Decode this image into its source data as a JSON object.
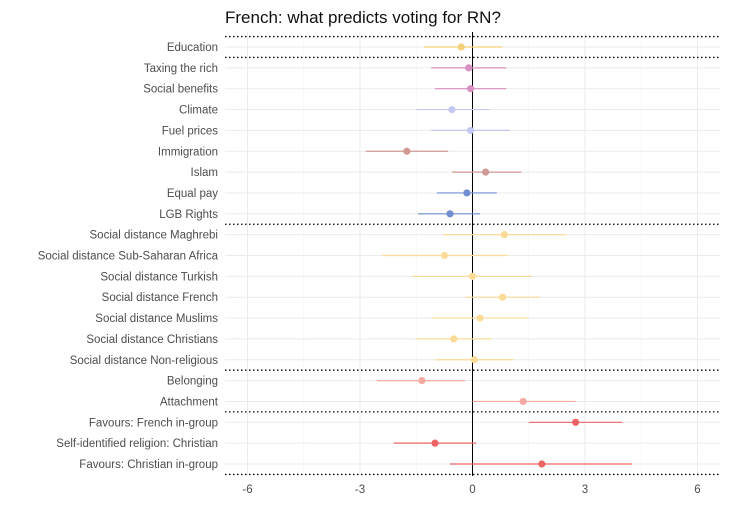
{
  "chart_data": {
    "type": "forest",
    "title": "French: what predicts voting for RN?",
    "xlabel": "",
    "ylabel": "",
    "xlim": [
      -6.6,
      6.6
    ],
    "xticks": [
      -6,
      -3,
      0,
      3,
      6
    ],
    "grid": true,
    "legend": "none",
    "reference_line": 0,
    "items": [
      {
        "label": "Education",
        "estimate": -0.3,
        "lower": -1.3,
        "upper": 0.8,
        "color": "#f5d07a"
      },
      {
        "label": "Taxing the rich",
        "estimate": -0.1,
        "lower": -1.1,
        "upper": 0.9,
        "color": "#d98fc0"
      },
      {
        "label": "Social benefits",
        "estimate": -0.05,
        "lower": -1.0,
        "upper": 0.9,
        "color": "#d98fc0"
      },
      {
        "label": "Climate",
        "estimate": -0.55,
        "lower": -1.5,
        "upper": 0.45,
        "color": "#c3c8f2"
      },
      {
        "label": "Fuel prices",
        "estimate": -0.05,
        "lower": -1.1,
        "upper": 1.0,
        "color": "#c3c8f2"
      },
      {
        "label": "Immigration",
        "estimate": -1.75,
        "lower": -2.85,
        "upper": -0.65,
        "color": "#d19a95"
      },
      {
        "label": "Islam",
        "estimate": 0.35,
        "lower": -0.55,
        "upper": 1.3,
        "color": "#d19a95"
      },
      {
        "label": "Equal pay",
        "estimate": -0.15,
        "lower": -0.95,
        "upper": 0.65,
        "color": "#6f8fd0"
      },
      {
        "label": "LGB Rights",
        "estimate": -0.6,
        "lower": -1.45,
        "upper": 0.2,
        "color": "#6f8fd0"
      },
      {
        "label": "Social distance Maghrebi",
        "estimate": 0.85,
        "lower": -0.8,
        "upper": 2.5,
        "color": "#fcdb99"
      },
      {
        "label": "Social distance Sub-Saharan Africa",
        "estimate": -0.75,
        "lower": -2.4,
        "upper": 0.95,
        "color": "#fcdb99"
      },
      {
        "label": "Social distance Turkish",
        "estimate": 0.0,
        "lower": -1.6,
        "upper": 1.6,
        "color": "#fcdb99"
      },
      {
        "label": "Social distance French",
        "estimate": 0.8,
        "lower": -0.2,
        "upper": 1.8,
        "color": "#fcdb99"
      },
      {
        "label": "Social distance Muslims",
        "estimate": 0.2,
        "lower": -1.1,
        "upper": 1.5,
        "color": "#fcdb99"
      },
      {
        "label": "Social distance Christians",
        "estimate": -0.5,
        "lower": -1.5,
        "upper": 0.5,
        "color": "#fcdb99"
      },
      {
        "label": "Social distance Non-religious",
        "estimate": 0.05,
        "lower": -1.0,
        "upper": 1.1,
        "color": "#fcdb99"
      },
      {
        "label": "Belonging",
        "estimate": -1.35,
        "lower": -2.55,
        "upper": -0.2,
        "color": "#f4a9a3"
      },
      {
        "label": "Attachment",
        "estimate": 1.35,
        "lower": 0.0,
        "upper": 2.75,
        "color": "#f4a9a3"
      },
      {
        "label": "Favours: French in-group",
        "estimate": 2.75,
        "lower": 1.5,
        "upper": 4.0,
        "color": "#ee6466"
      },
      {
        "label": "Self-identified religion: Christian",
        "estimate": -1.0,
        "lower": -2.1,
        "upper": 0.1,
        "color": "#ee6466"
      },
      {
        "label": "Favours: Christian in-group",
        "estimate": 1.85,
        "lower": -0.6,
        "upper": 4.25,
        "color": "#ee6466"
      }
    ],
    "group_separators_after": [
      "Education",
      "LGB Rights",
      "Social distance Non-religious",
      "Attachment",
      "Favours: Christian in-group"
    ],
    "group_separators_before": [
      "Education"
    ]
  }
}
